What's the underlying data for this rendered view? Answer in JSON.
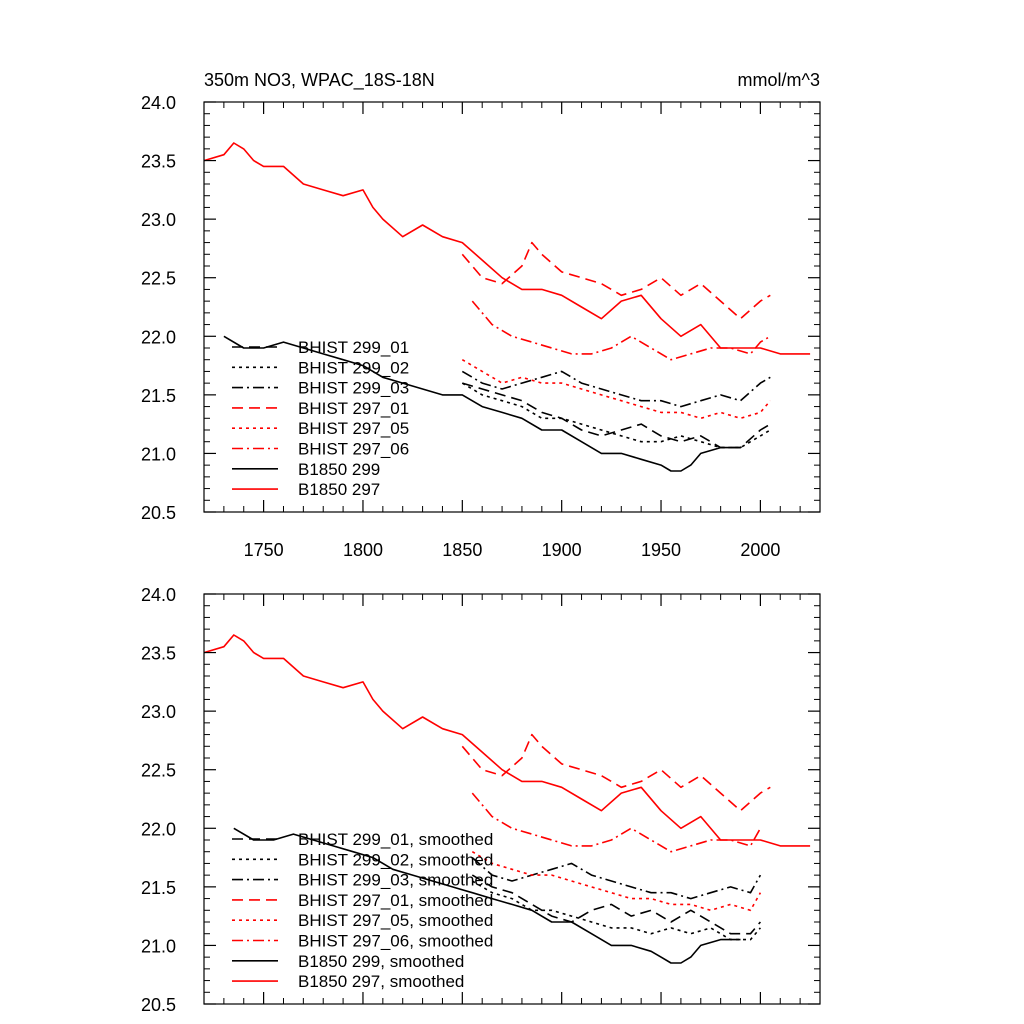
{
  "chart_data": [
    {
      "type": "line",
      "title": "350m NO3, WPAC_18S-18N",
      "units": "mmol/m^3",
      "xlabel": "",
      "ylabel": "",
      "xlim": [
        1720,
        2030
      ],
      "ylim": [
        20.5,
        24.0
      ],
      "x_ticks": [
        1750,
        1800,
        1850,
        1900,
        1950,
        2000
      ],
      "x_tick_labels": [
        "1750",
        "1800",
        "1850",
        "1900",
        "1950",
        "2000"
      ],
      "y_ticks": [
        20.5,
        21.0,
        21.5,
        22.0,
        22.5,
        23.0,
        23.5,
        24.0
      ],
      "y_tick_labels": [
        "20.5",
        "21.0",
        "21.5",
        "22.0",
        "22.5",
        "23.0",
        "23.5",
        "24.0"
      ],
      "legend_position": "lower-left",
      "series": [
        {
          "name": "BHIST 299_01",
          "color": "#000000",
          "dash": "longdash",
          "x": [
            1850,
            1860,
            1870,
            1880,
            1890,
            1900,
            1910,
            1920,
            1930,
            1940,
            1950,
            1960,
            1970,
            1980,
            1990,
            2000,
            2005
          ],
          "y": [
            21.6,
            21.55,
            21.5,
            21.45,
            21.35,
            21.3,
            21.2,
            21.15,
            21.2,
            21.25,
            21.15,
            21.1,
            21.15,
            21.05,
            21.05,
            21.2,
            21.25
          ]
        },
        {
          "name": "BHIST 299_02",
          "color": "#000000",
          "dash": "dot",
          "x": [
            1850,
            1860,
            1870,
            1880,
            1890,
            1900,
            1910,
            1920,
            1930,
            1940,
            1950,
            1960,
            1970,
            1980,
            1990,
            2000,
            2005
          ],
          "y": [
            21.6,
            21.5,
            21.45,
            21.4,
            21.3,
            21.3,
            21.25,
            21.2,
            21.15,
            21.1,
            21.1,
            21.15,
            21.1,
            21.05,
            21.05,
            21.15,
            21.2
          ]
        },
        {
          "name": "BHIST 299_03",
          "color": "#000000",
          "dash": "dashdot",
          "x": [
            1850,
            1860,
            1870,
            1880,
            1890,
            1900,
            1910,
            1920,
            1930,
            1940,
            1950,
            1960,
            1970,
            1980,
            1990,
            2000,
            2005
          ],
          "y": [
            21.7,
            21.6,
            21.55,
            21.6,
            21.65,
            21.7,
            21.6,
            21.55,
            21.5,
            21.45,
            21.45,
            21.4,
            21.45,
            21.5,
            21.45,
            21.6,
            21.65
          ]
        },
        {
          "name": "BHIST 297_01",
          "color": "#ff0000",
          "dash": "longdash",
          "x": [
            1850,
            1860,
            1870,
            1880,
            1885,
            1890,
            1900,
            1910,
            1920,
            1930,
            1940,
            1950,
            1960,
            1970,
            1980,
            1990,
            2000,
            2005
          ],
          "y": [
            22.7,
            22.5,
            22.45,
            22.6,
            22.8,
            22.7,
            22.55,
            22.5,
            22.45,
            22.35,
            22.4,
            22.5,
            22.35,
            22.45,
            22.3,
            22.15,
            22.3,
            22.35
          ]
        },
        {
          "name": "BHIST 297_05",
          "color": "#ff0000",
          "dash": "dot",
          "x": [
            1850,
            1860,
            1870,
            1880,
            1890,
            1900,
            1910,
            1920,
            1930,
            1940,
            1950,
            1960,
            1970,
            1980,
            1990,
            2000,
            2005
          ],
          "y": [
            21.8,
            21.7,
            21.6,
            21.65,
            21.6,
            21.6,
            21.55,
            21.5,
            21.45,
            21.4,
            21.35,
            21.35,
            21.3,
            21.35,
            21.3,
            21.35,
            21.45
          ]
        },
        {
          "name": "BHIST 297_06",
          "color": "#ff0000",
          "dash": "dashdot",
          "x": [
            1855,
            1865,
            1875,
            1885,
            1895,
            1905,
            1915,
            1925,
            1935,
            1945,
            1955,
            1965,
            1975,
            1985,
            1995,
            2000,
            2005
          ],
          "y": [
            22.3,
            22.1,
            22.0,
            21.95,
            21.9,
            21.85,
            21.85,
            21.9,
            22.0,
            21.9,
            21.8,
            21.85,
            21.9,
            21.9,
            21.85,
            21.95,
            22.0
          ]
        },
        {
          "name": "B1850 299",
          "color": "#000000",
          "dash": "solid",
          "x": [
            1730,
            1740,
            1750,
            1760,
            1770,
            1780,
            1790,
            1800,
            1810,
            1820,
            1830,
            1840,
            1850,
            1860,
            1870,
            1880,
            1890,
            1900,
            1910,
            1920,
            1930,
            1940,
            1950,
            1955,
            1960,
            1965,
            1970,
            1980,
            1990
          ],
          "y": [
            22.0,
            21.9,
            21.9,
            21.95,
            21.9,
            21.85,
            21.8,
            21.75,
            21.65,
            21.6,
            21.55,
            21.5,
            21.5,
            21.4,
            21.35,
            21.3,
            21.2,
            21.2,
            21.1,
            21.0,
            21.0,
            20.95,
            20.9,
            20.85,
            20.85,
            20.9,
            21.0,
            21.05,
            21.05
          ]
        },
        {
          "name": "B1850 297",
          "color": "#ff0000",
          "dash": "solid",
          "x": [
            1720,
            1730,
            1735,
            1740,
            1745,
            1750,
            1760,
            1770,
            1780,
            1790,
            1800,
            1805,
            1810,
            1820,
            1830,
            1840,
            1850,
            1860,
            1870,
            1880,
            1890,
            1900,
            1910,
            1920,
            1930,
            1940,
            1950,
            1960,
            1970,
            1980,
            1990,
            2000,
            2010,
            2020,
            2025
          ],
          "y": [
            23.5,
            23.55,
            23.65,
            23.6,
            23.5,
            23.45,
            23.45,
            23.3,
            23.25,
            23.2,
            23.25,
            23.1,
            23.0,
            22.85,
            22.95,
            22.85,
            22.8,
            22.65,
            22.5,
            22.4,
            22.4,
            22.35,
            22.25,
            22.15,
            22.3,
            22.35,
            22.15,
            22.0,
            22.1,
            21.9,
            21.9,
            21.9,
            21.85,
            21.85,
            21.85
          ]
        }
      ]
    },
    {
      "type": "line",
      "title": "",
      "xlabel": "",
      "ylabel": "",
      "xlim": [
        1720,
        2030
      ],
      "ylim": [
        20.5,
        24.0
      ],
      "x_ticks": [
        1750,
        1800,
        1850,
        1900,
        1950,
        2000
      ],
      "x_tick_labels": [],
      "y_ticks": [
        20.5,
        21.0,
        21.5,
        22.0,
        22.5,
        23.0,
        23.5,
        24.0
      ],
      "y_tick_labels": [
        "20.5",
        "21.0",
        "21.5",
        "22.0",
        "22.5",
        "23.0",
        "23.5",
        "24.0"
      ],
      "legend_position": "lower-left",
      "series": [
        {
          "name": "BHIST 299_01, smoothed",
          "color": "#000000",
          "dash": "longdash",
          "x": [
            1855,
            1865,
            1875,
            1885,
            1895,
            1905,
            1915,
            1925,
            1935,
            1945,
            1955,
            1965,
            1975,
            1985,
            1995,
            2000
          ],
          "y": [
            21.6,
            21.5,
            21.45,
            21.35,
            21.25,
            21.2,
            21.3,
            21.35,
            21.25,
            21.3,
            21.2,
            21.3,
            21.2,
            21.1,
            21.1,
            21.2
          ]
        },
        {
          "name": "BHIST 299_02, smoothed",
          "color": "#000000",
          "dash": "dot",
          "x": [
            1855,
            1865,
            1875,
            1885,
            1895,
            1905,
            1915,
            1925,
            1935,
            1945,
            1955,
            1965,
            1975,
            1985,
            1995,
            2000
          ],
          "y": [
            21.55,
            21.45,
            21.4,
            21.3,
            21.3,
            21.25,
            21.2,
            21.15,
            21.15,
            21.1,
            21.15,
            21.1,
            21.15,
            21.05,
            21.05,
            21.15
          ]
        },
        {
          "name": "BHIST 299_03, smoothed",
          "color": "#000000",
          "dash": "dashdot",
          "x": [
            1855,
            1865,
            1875,
            1885,
            1895,
            1905,
            1915,
            1925,
            1935,
            1945,
            1955,
            1965,
            1975,
            1985,
            1995,
            2000
          ],
          "y": [
            21.75,
            21.6,
            21.55,
            21.6,
            21.65,
            21.7,
            21.6,
            21.55,
            21.5,
            21.45,
            21.45,
            21.4,
            21.45,
            21.5,
            21.45,
            21.6
          ]
        },
        {
          "name": "BHIST 297_01, smoothed",
          "color": "#ff0000",
          "dash": "longdash",
          "x": [
            1850,
            1860,
            1870,
            1880,
            1885,
            1890,
            1900,
            1910,
            1920,
            1930,
            1940,
            1950,
            1960,
            1970,
            1980,
            1990,
            2000,
            2005
          ],
          "y": [
            22.7,
            22.5,
            22.45,
            22.6,
            22.8,
            22.7,
            22.55,
            22.5,
            22.45,
            22.35,
            22.4,
            22.5,
            22.35,
            22.45,
            22.3,
            22.15,
            22.3,
            22.35
          ]
        },
        {
          "name": "BHIST 297_05, smoothed",
          "color": "#ff0000",
          "dash": "dot",
          "x": [
            1855,
            1865,
            1875,
            1885,
            1895,
            1905,
            1915,
            1925,
            1935,
            1945,
            1955,
            1965,
            1975,
            1985,
            1995,
            2000
          ],
          "y": [
            21.8,
            21.7,
            21.65,
            21.6,
            21.6,
            21.55,
            21.5,
            21.45,
            21.4,
            21.4,
            21.35,
            21.35,
            21.3,
            21.35,
            21.3,
            21.45
          ]
        },
        {
          "name": "BHIST 297_06, smoothed",
          "color": "#ff0000",
          "dash": "dashdot",
          "x": [
            1855,
            1865,
            1875,
            1885,
            1895,
            1905,
            1915,
            1925,
            1935,
            1945,
            1955,
            1965,
            1975,
            1985,
            1995,
            2000
          ],
          "y": [
            22.3,
            22.1,
            22.0,
            21.95,
            21.9,
            21.85,
            21.85,
            21.9,
            22.0,
            21.9,
            21.8,
            21.85,
            21.9,
            21.9,
            21.85,
            22.0
          ]
        },
        {
          "name": "B1850 299, smoothed",
          "color": "#000000",
          "dash": "solid",
          "x": [
            1735,
            1745,
            1755,
            1765,
            1775,
            1785,
            1795,
            1805,
            1815,
            1825,
            1835,
            1845,
            1855,
            1865,
            1875,
            1885,
            1895,
            1905,
            1915,
            1925,
            1935,
            1945,
            1950,
            1955,
            1960,
            1965,
            1970,
            1980,
            1990
          ],
          "y": [
            22.0,
            21.9,
            21.9,
            21.95,
            21.9,
            21.85,
            21.8,
            21.75,
            21.65,
            21.6,
            21.55,
            21.5,
            21.45,
            21.4,
            21.35,
            21.3,
            21.2,
            21.2,
            21.1,
            21.0,
            21.0,
            20.95,
            20.9,
            20.85,
            20.85,
            20.9,
            21.0,
            21.05,
            21.05
          ]
        },
        {
          "name": "B1850 297, smoothed",
          "color": "#ff0000",
          "dash": "solid",
          "x": [
            1720,
            1730,
            1735,
            1740,
            1745,
            1750,
            1760,
            1770,
            1780,
            1790,
            1800,
            1805,
            1810,
            1820,
            1830,
            1840,
            1850,
            1860,
            1870,
            1880,
            1890,
            1900,
            1910,
            1920,
            1930,
            1940,
            1950,
            1960,
            1970,
            1980,
            1990,
            2000,
            2010,
            2020,
            2025
          ],
          "y": [
            23.5,
            23.55,
            23.65,
            23.6,
            23.5,
            23.45,
            23.45,
            23.3,
            23.25,
            23.2,
            23.25,
            23.1,
            23.0,
            22.85,
            22.95,
            22.85,
            22.8,
            22.65,
            22.5,
            22.4,
            22.4,
            22.35,
            22.25,
            22.15,
            22.3,
            22.35,
            22.15,
            22.0,
            22.1,
            21.9,
            21.9,
            21.9,
            21.85,
            21.85,
            21.85
          ]
        }
      ]
    }
  ]
}
